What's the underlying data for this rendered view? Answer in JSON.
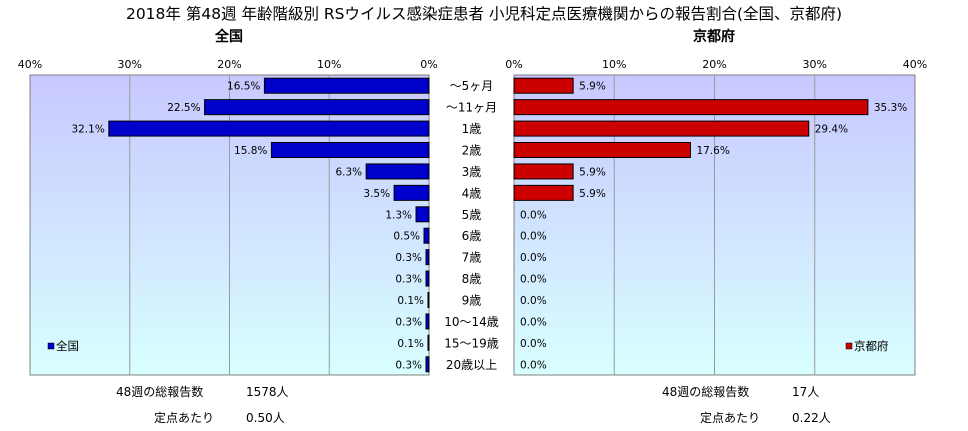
{
  "title": "2018年 第48週 年齢階級別 RSウイルス感染症患者 小児科定点医療機関からの報告割合(全国、京都府)",
  "left_panel": {
    "name": "全国",
    "legend": "全国",
    "color": "#0000CC",
    "total_label": "48週の総報告数",
    "total_value": "1578人",
    "per_point_label": "定点あたり",
    "per_point_value": "0.50人"
  },
  "right_panel": {
    "name": "京都府",
    "legend": "京都府",
    "color": "#CC0000",
    "total_label": "48週の総報告数",
    "total_value": "17人",
    "per_point_label": "定点あたり",
    "per_point_value": "0.22人"
  },
  "colors": {
    "plot_bg_top": "#C8C8FF",
    "plot_bg_bottom": "#D8FFFF"
  },
  "chart_data": [
    {
      "type": "bar",
      "title": "全国",
      "categories": [
        "～5ヶ月",
        "～11ヶ月",
        "1歳",
        "2歳",
        "3歳",
        "4歳",
        "5歳",
        "6歳",
        "7歳",
        "8歳",
        "9歳",
        "10～14歳",
        "15～19歳",
        "20歳以上"
      ],
      "series": [
        {
          "name": "全国",
          "values": [
            16.5,
            22.5,
            32.1,
            15.8,
            6.3,
            3.5,
            1.3,
            0.5,
            0.3,
            0.3,
            0.1,
            0.3,
            0.1,
            0.3
          ]
        }
      ],
      "value_labels": [
        "16.5%",
        "22.5%",
        "32.1%",
        "15.8%",
        "6.3%",
        "3.5%",
        "1.3%",
        "0.5%",
        "0.3%",
        "0.3%",
        "0.1%",
        "0.3%",
        "0.1%",
        "0.3%"
      ],
      "xlim": [
        0,
        40
      ],
      "x_ticks": [
        "40%",
        "30%",
        "20%",
        "10%",
        "0%"
      ],
      "orientation": "horizontal",
      "direction": "right-to-left",
      "grid": true,
      "legend": "bottom-left"
    },
    {
      "type": "bar",
      "title": "京都府",
      "categories": [
        "～5ヶ月",
        "～11ヶ月",
        "1歳",
        "2歳",
        "3歳",
        "4歳",
        "5歳",
        "6歳",
        "7歳",
        "8歳",
        "9歳",
        "10～14歳",
        "15～19歳",
        "20歳以上"
      ],
      "series": [
        {
          "name": "京都府",
          "values": [
            5.9,
            35.3,
            29.4,
            17.6,
            5.9,
            5.9,
            0.0,
            0.0,
            0.0,
            0.0,
            0.0,
            0.0,
            0.0,
            0.0
          ]
        }
      ],
      "value_labels": [
        "5.9%",
        "35.3%",
        "29.4%",
        "17.6%",
        "5.9%",
        "5.9%",
        "0.0%",
        "0.0%",
        "0.0%",
        "0.0%",
        "0.0%",
        "0.0%",
        "0.0%",
        "0.0%"
      ],
      "xlim": [
        0,
        40
      ],
      "x_ticks": [
        "0%",
        "10%",
        "20%",
        "30%",
        "40%"
      ],
      "orientation": "horizontal",
      "direction": "left-to-right",
      "grid": true,
      "legend": "bottom-right"
    }
  ]
}
